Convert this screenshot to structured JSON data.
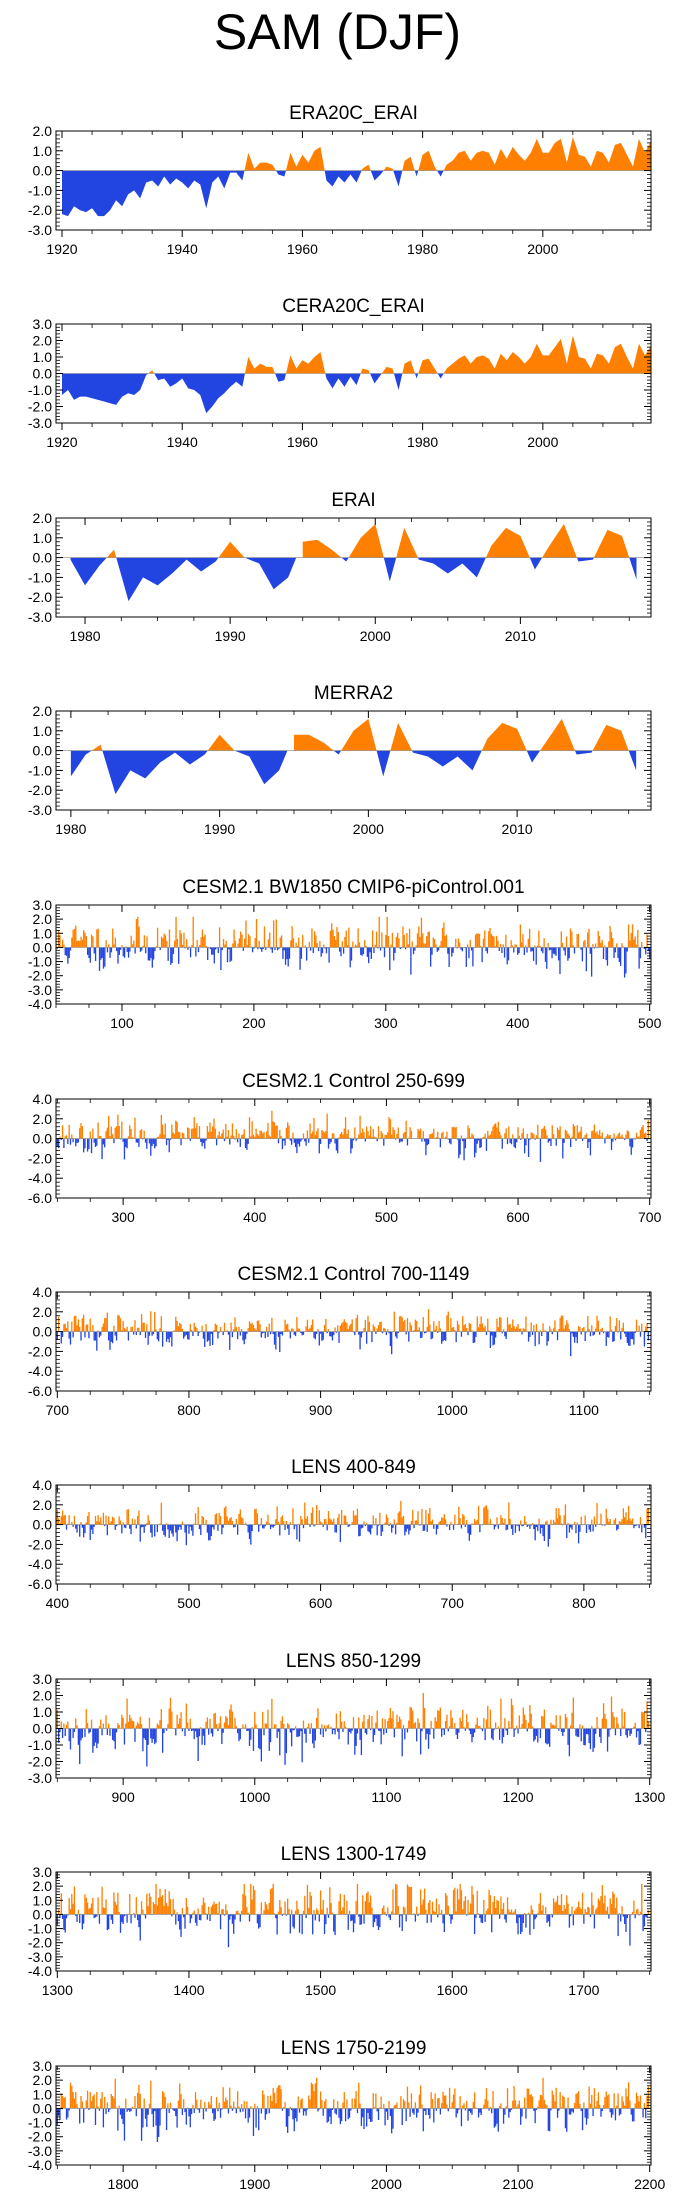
{
  "title": "SAM (DJF)",
  "colors": {
    "positive": "#ff8000",
    "negative": "#2244e0",
    "axis": "#000000"
  },
  "chart_data": [
    {
      "type": "area",
      "title": "ERA20C_ERAI",
      "xlim": [
        1919,
        2018
      ],
      "ylim": [
        -3.0,
        2.0
      ],
      "yticks": [
        -3.0,
        -2.0,
        -1.0,
        0.0,
        1.0,
        2.0
      ],
      "yticklabels": [
        "-3.0",
        "-2.0",
        "-1.0",
        "0.0",
        "1.0",
        "2.0"
      ],
      "xticks": [
        1920,
        1940,
        1960,
        1980,
        2000
      ],
      "xticklabels": [
        "1920",
        "1940",
        "1960",
        "1980",
        "2000"
      ],
      "x_start": 1920,
      "x_step": 1,
      "values": [
        -2.2,
        -2.3,
        -1.8,
        -2.0,
        -2.1,
        -1.9,
        -2.3,
        -2.3,
        -2.0,
        -1.5,
        -1.8,
        -1.2,
        -1.0,
        -1.4,
        -0.6,
        -0.5,
        -0.8,
        -0.3,
        -0.7,
        -0.4,
        -0.6,
        -0.9,
        -0.5,
        -0.7,
        -1.9,
        -0.6,
        -0.3,
        -0.9,
        -0.1,
        -0.1,
        -0.5,
        0.9,
        0.1,
        0.4,
        0.4,
        0.3,
        -0.2,
        -0.3,
        0.9,
        0.2,
        0.8,
        0.4,
        1.0,
        1.2,
        -0.5,
        -0.8,
        -0.3,
        -0.6,
        -0.2,
        -0.6,
        0.1,
        0.3,
        -0.5,
        -0.2,
        0.2,
        0.1,
        -0.8,
        0.5,
        0.7,
        -0.3,
        0.8,
        1.0,
        0.2,
        -0.3,
        0.3,
        0.5,
        0.9,
        1.0,
        0.5,
        0.9,
        1.0,
        0.9,
        0.3,
        1.1,
        0.6,
        1.2,
        0.8,
        0.5,
        0.9,
        1.6,
        0.9,
        0.9,
        1.4,
        1.6,
        0.4,
        1.7,
        0.8,
        0.7,
        0.2,
        1.0,
        0.9,
        0.4,
        1.3,
        1.4,
        0.8,
        0.2,
        1.6,
        0.9,
        1.5,
        1.3,
        0.5
      ]
    },
    {
      "type": "area",
      "title": "CERA20C_ERAI",
      "xlim": [
        1919,
        2018
      ],
      "ylim": [
        -3.0,
        3.0
      ],
      "yticks": [
        -3.0,
        -2.0,
        -1.0,
        0.0,
        1.0,
        2.0,
        3.0
      ],
      "yticklabels": [
        "-3.0",
        "-2.0",
        "-1.0",
        "0.0",
        "1.0",
        "2.0",
        "3.0"
      ],
      "xticks": [
        1920,
        1940,
        1960,
        1980,
        2000
      ],
      "xticklabels": [
        "1920",
        "1940",
        "1960",
        "1980",
        "2000"
      ],
      "x_start": 1920,
      "x_step": 1,
      "values": [
        -1.3,
        -1.0,
        -1.6,
        -1.4,
        -1.4,
        -1.5,
        -1.6,
        -1.7,
        -1.8,
        -1.9,
        -1.4,
        -1.2,
        -1.3,
        -1.0,
        -0.1,
        0.2,
        -0.4,
        -0.3,
        -0.8,
        -0.6,
        -0.3,
        -0.9,
        -1.0,
        -1.3,
        -2.4,
        -2.0,
        -1.5,
        -1.2,
        -0.8,
        -0.5,
        -0.8,
        1.0,
        0.3,
        0.6,
        0.4,
        0.4,
        -0.5,
        -0.4,
        1.1,
        0.3,
        0.8,
        0.6,
        1.0,
        1.3,
        -0.3,
        -0.9,
        -0.3,
        -0.8,
        -0.2,
        -0.7,
        0.3,
        0.2,
        -0.6,
        -0.1,
        0.4,
        0.3,
        -1.0,
        0.6,
        0.8,
        -0.3,
        0.8,
        0.9,
        0.3,
        -0.3,
        0.3,
        0.6,
        0.9,
        1.1,
        0.6,
        1.0,
        1.1,
        0.9,
        0.3,
        1.2,
        0.8,
        1.3,
        1.0,
        0.6,
        1.0,
        1.8,
        1.1,
        1.1,
        1.6,
        2.1,
        0.6,
        2.3,
        1.0,
        0.9,
        0.3,
        1.2,
        1.1,
        0.6,
        1.6,
        1.8,
        1.0,
        0.3,
        1.8,
        1.1,
        1.7,
        1.5,
        0.6
      ]
    },
    {
      "type": "area",
      "title": "ERAI",
      "xlim": [
        1978,
        2019
      ],
      "ylim": [
        -3.0,
        2.0
      ],
      "yticks": [
        -3.0,
        -2.0,
        -1.0,
        0.0,
        1.0,
        2.0
      ],
      "yticklabels": [
        "-3.0",
        "-2.0",
        "-1.0",
        "0.0",
        "1.0",
        "2.0"
      ],
      "xticks": [
        1980,
        1990,
        2000,
        2010
      ],
      "xticklabels": [
        "1980",
        "1990",
        "2000",
        "2010"
      ],
      "x_start": 1979,
      "x_step": 1,
      "values": [
        -0.1,
        -1.4,
        -0.4,
        0.4,
        -2.2,
        -1.0,
        -1.4,
        -0.8,
        -0.1,
        -0.7,
        -0.2,
        0.8,
        0.0,
        -0.3,
        -1.6,
        -1.0,
        0.8,
        0.9,
        0.4,
        -0.2,
        1.0,
        1.7,
        -1.2,
        1.5,
        -0.1,
        -0.3,
        -0.8,
        -0.3,
        -1.0,
        0.6,
        1.5,
        1.1,
        -0.6,
        0.6,
        1.7,
        -0.2,
        -0.1,
        1.4,
        1.1,
        -1.1
      ]
    },
    {
      "type": "area",
      "title": "MERRA2",
      "xlim": [
        1979,
        2019
      ],
      "ylim": [
        -3.0,
        2.0
      ],
      "yticks": [
        -3.0,
        -2.0,
        -1.0,
        0.0,
        1.0,
        2.0
      ],
      "yticklabels": [
        "-3.0",
        "-2.0",
        "-1.0",
        "0.0",
        "1.0",
        "2.0"
      ],
      "xticks": [
        1980,
        1990,
        2000,
        2010
      ],
      "xticklabels": [
        "1980",
        "1990",
        "2000",
        "2010"
      ],
      "x_start": 1980,
      "x_step": 1,
      "values": [
        -1.3,
        -0.2,
        0.3,
        -2.2,
        -1.0,
        -1.4,
        -0.6,
        -0.1,
        -0.7,
        -0.2,
        0.8,
        0.0,
        -0.3,
        -1.7,
        -1.0,
        0.8,
        0.8,
        0.4,
        -0.2,
        1.0,
        1.6,
        -1.3,
        1.4,
        -0.1,
        -0.3,
        -0.8,
        -0.3,
        -1.0,
        0.6,
        1.4,
        1.1,
        -0.6,
        0.5,
        1.6,
        -0.2,
        -0.1,
        1.3,
        1.0,
        -1.0
      ]
    },
    {
      "type": "bar",
      "title": "CESM2.1 BW1850 CMIP6-piControl.001",
      "xlim": [
        50,
        501
      ],
      "ylim": [
        -4.0,
        3.0
      ],
      "yticks": [
        -4.0,
        -3.0,
        -2.0,
        -1.0,
        0.0,
        1.0,
        2.0,
        3.0
      ],
      "yticklabels": [
        "-4.0",
        "-3.0",
        "-2.0",
        "-1.0",
        "0.0",
        "1.0",
        "2.0",
        "3.0"
      ],
      "xticks": [
        100,
        200,
        300,
        400,
        500
      ],
      "xticklabels": [
        "100",
        "200",
        "300",
        "400",
        "500"
      ],
      "x_start": 51,
      "x_step": 1,
      "series_count": 450,
      "seed": 11,
      "amplitude": 0.85,
      "bias": 0.15,
      "values": []
    },
    {
      "type": "bar",
      "title": "CESM2.1 Control 250-699",
      "xlim": [
        249,
        701
      ],
      "ylim": [
        -6.0,
        4.0
      ],
      "yticks": [
        -6.0,
        -4.0,
        -2.0,
        0.0,
        2.0,
        4.0
      ],
      "yticklabels": [
        "-6.0",
        "-4.0",
        "-2.0",
        "0.0",
        "2.0",
        "4.0"
      ],
      "xticks": [
        300,
        400,
        500,
        600,
        700
      ],
      "xticklabels": [
        "300",
        "400",
        "500",
        "600",
        "700"
      ],
      "x_start": 250,
      "x_step": 1,
      "series_count": 450,
      "seed": 23,
      "amplitude": 0.85,
      "bias": 0.15,
      "values": []
    },
    {
      "type": "bar",
      "title": "CESM2.1 Control 700-1149",
      "xlim": [
        699,
        1151
      ],
      "ylim": [
        -6.0,
        4.0
      ],
      "yticks": [
        -6.0,
        -4.0,
        -2.0,
        0.0,
        2.0,
        4.0
      ],
      "yticklabels": [
        "-6.0",
        "-4.0",
        "-2.0",
        "0.0",
        "2.0",
        "4.0"
      ],
      "xticks": [
        700,
        800,
        900,
        1000,
        1100
      ],
      "xticklabels": [
        "700",
        "800",
        "900",
        "1000",
        "1100"
      ],
      "x_start": 700,
      "x_step": 1,
      "series_count": 450,
      "seed": 37,
      "amplitude": 0.85,
      "bias": 0.1,
      "values": []
    },
    {
      "type": "bar",
      "title": "LENS 400-849",
      "xlim": [
        399,
        851
      ],
      "ylim": [
        -6.0,
        4.0
      ],
      "yticks": [
        -6.0,
        -4.0,
        -2.0,
        0.0,
        2.0,
        4.0
      ],
      "yticklabels": [
        "-6.0",
        "-4.0",
        "-2.0",
        "0.0",
        "2.0",
        "4.0"
      ],
      "xticks": [
        400,
        500,
        600,
        700,
        800
      ],
      "xticklabels": [
        "400",
        "500",
        "600",
        "700",
        "800"
      ],
      "x_start": 400,
      "x_step": 1,
      "series_count": 450,
      "seed": 41,
      "amplitude": 0.85,
      "bias": 0.1,
      "values": []
    },
    {
      "type": "bar",
      "title": "LENS 850-1299",
      "xlim": [
        849,
        1301
      ],
      "ylim": [
        -3.0,
        3.0
      ],
      "yticks": [
        -3.0,
        -2.0,
        -1.0,
        0.0,
        1.0,
        2.0,
        3.0
      ],
      "yticklabels": [
        "-3.0",
        "-2.0",
        "-1.0",
        "0.0",
        "1.0",
        "2.0",
        "3.0"
      ],
      "xticks": [
        900,
        1000,
        1100,
        1200,
        1300
      ],
      "xticklabels": [
        "900",
        "1000",
        "1100",
        "1200",
        "1300"
      ],
      "x_start": 850,
      "x_step": 1,
      "series_count": 450,
      "seed": 53,
      "amplitude": 0.8,
      "bias": 0.0,
      "values": []
    },
    {
      "type": "bar",
      "title": "LENS 1300-1749",
      "xlim": [
        1299,
        1751
      ],
      "ylim": [
        -4.0,
        3.0
      ],
      "yticks": [
        -4.0,
        -3.0,
        -2.0,
        -1.0,
        0.0,
        1.0,
        2.0,
        3.0
      ],
      "yticklabels": [
        "-4.0",
        "-3.0",
        "-2.0",
        "-1.0",
        "0.0",
        "1.0",
        "2.0",
        "3.0"
      ],
      "xticks": [
        1300,
        1400,
        1500,
        1600,
        1700
      ],
      "xticklabels": [
        "1300",
        "1400",
        "1500",
        "1600",
        "1700"
      ],
      "x_start": 1300,
      "x_step": 1,
      "series_count": 450,
      "seed": 67,
      "amplitude": 0.85,
      "bias": 0.1,
      "values": []
    },
    {
      "type": "bar",
      "title": "LENS 1750-2199",
      "xlim": [
        1749,
        2201
      ],
      "ylim": [
        -4.0,
        3.0
      ],
      "yticks": [
        -4.0,
        -3.0,
        -2.0,
        -1.0,
        0.0,
        1.0,
        2.0,
        3.0
      ],
      "yticklabels": [
        "-4.0",
        "-3.0",
        "-2.0",
        "-1.0",
        "0.0",
        "1.0",
        "2.0",
        "3.0"
      ],
      "xticks": [
        1800,
        1900,
        2000,
        2100,
        2200
      ],
      "xticklabels": [
        "1800",
        "1900",
        "2000",
        "2100",
        "2200"
      ],
      "x_start": 1750,
      "x_step": 1,
      "series_count": 450,
      "seed": 79,
      "amplitude": 0.85,
      "bias": 0.1,
      "values": []
    }
  ]
}
